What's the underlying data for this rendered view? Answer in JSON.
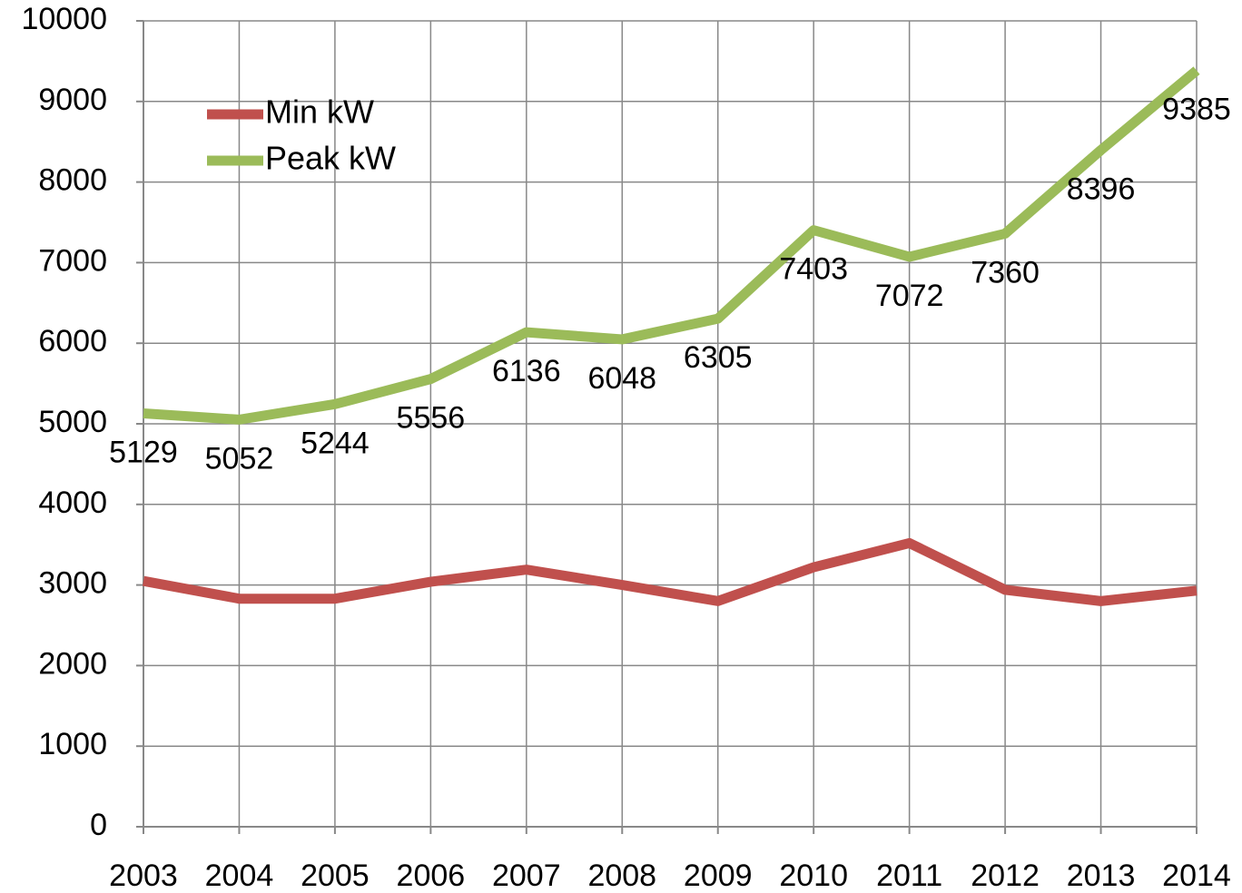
{
  "chart_data": {
    "type": "line",
    "categories": [
      "2003",
      "2004",
      "2005",
      "2006",
      "2007",
      "2008",
      "2009",
      "2010",
      "2011",
      "2012",
      "2013",
      "2014"
    ],
    "series": [
      {
        "name": "Min kW",
        "color": "#c0504d",
        "data_labels": false,
        "values": [
          3050,
          2830,
          2830,
          3040,
          3190,
          3000,
          2800,
          3220,
          3520,
          2940,
          2800,
          2930
        ]
      },
      {
        "name": "Peak kW",
        "color": "#9bbb59",
        "data_labels": true,
        "values": [
          5129,
          5052,
          5244,
          5556,
          6136,
          6048,
          6305,
          7403,
          7072,
          7360,
          8396,
          9385
        ]
      }
    ],
    "ylim": [
      0,
      10000
    ],
    "yticks": [
      0,
      1000,
      2000,
      3000,
      4000,
      5000,
      6000,
      7000,
      8000,
      9000,
      10000
    ],
    "grid": true,
    "legend": "upper left"
  }
}
